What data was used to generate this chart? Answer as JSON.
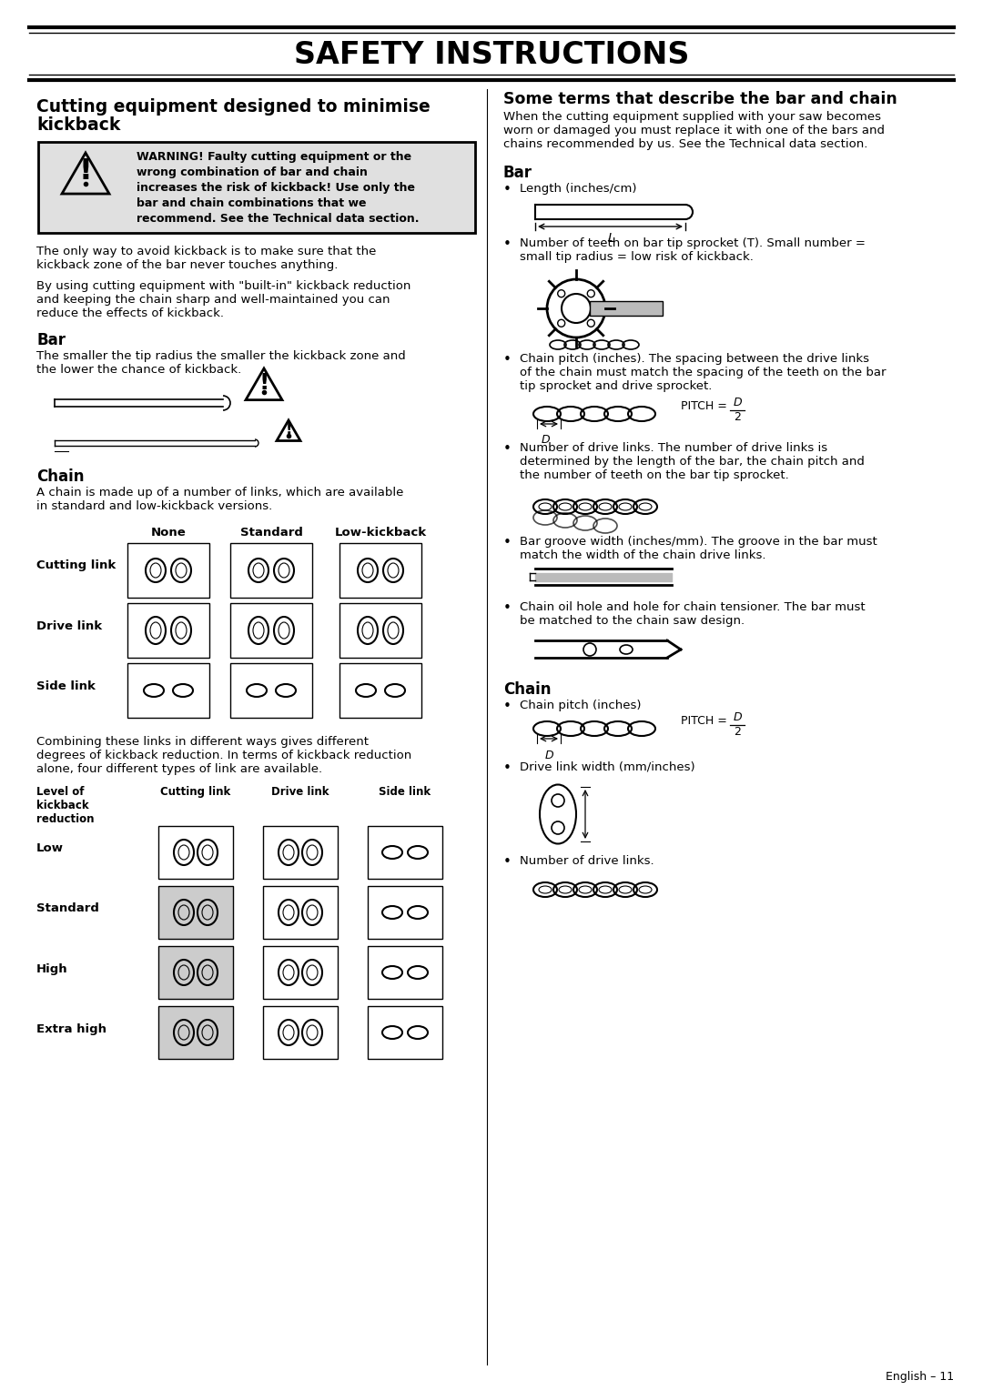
{
  "title": "SAFETY INSTRUCTIONS",
  "bg_color": "#ffffff",
  "text_color": "#000000",
  "page_number": "English – 11",
  "left_col": {
    "heading_line1": "Cutting equipment designed to minimise",
    "heading_line2": "kickback",
    "warning_lines": [
      "WARNING! Faulty cutting equipment or the",
      "wrong combination of bar and chain",
      "increases the risk of kickback! Use only the",
      "bar and chain combinations that we",
      "recommend. See the Technical data section."
    ],
    "para1_lines": [
      "The only way to avoid kickback is to make sure that the",
      "kickback zone of the bar never touches anything."
    ],
    "para2_lines": [
      "By using cutting equipment with \"built-in\" kickback reduction",
      "and keeping the chain sharp and well-maintained you can",
      "reduce the effects of kickback."
    ],
    "bar_heading": "Bar",
    "bar_text_lines": [
      "The smaller the tip radius the smaller the kickback zone and",
      "the lower the chance of kickback."
    ],
    "chain_heading": "Chain",
    "chain_text_lines": [
      "A chain is made up of a number of links, which are available",
      "in standard and low-kickback versions."
    ],
    "table1_headers": [
      "None",
      "Standard",
      "Low-kickback"
    ],
    "table1_rows": [
      "Cutting link",
      "Drive link",
      "Side link"
    ],
    "para3_lines": [
      "Combining these links in different ways gives different",
      "degrees of kickback reduction. In terms of kickback reduction",
      "alone, four different types of link are available."
    ],
    "table2_col0": "Level of\nkickback\nreduction",
    "table2_headers": [
      "Cutting link",
      "Drive link",
      "Side link"
    ],
    "table2_rows": [
      "Low",
      "Standard",
      "High",
      "Extra high"
    ]
  },
  "right_col": {
    "heading": "Some terms that describe the bar and chain",
    "intro_lines": [
      "When the cutting equipment supplied with your saw becomes",
      "worn or damaged you must replace it with one of the bars and",
      "chains recommended by us. See the Technical data section."
    ],
    "bar_heading": "Bar",
    "bar_item1": "Length (inches/cm)",
    "bar_item2_lines": [
      "Number of teeth on bar tip sprocket (T). Small number =",
      "small tip radius = low risk of kickback."
    ],
    "bar_item3_lines": [
      "Chain pitch (inches). The spacing between the drive links",
      "of the chain must match the spacing of the teeth on the bar",
      "tip sprocket and drive sprocket."
    ],
    "bar_item4_lines": [
      "Number of drive links. The number of drive links is",
      "determined by the length of the bar, the chain pitch and",
      "the number of teeth on the bar tip sprocket."
    ],
    "bar_item5_lines": [
      "Bar groove width (inches/mm). The groove in the bar must",
      "match the width of the chain drive links."
    ],
    "bar_item6_lines": [
      "Chain oil hole and hole for chain tensioner. The bar must",
      "be matched to the chain saw design."
    ],
    "chain_heading": "Chain",
    "chain_item1": "Chain pitch (inches)",
    "chain_item2": "Drive link width (mm/inches)",
    "chain_item3": "Number of drive links."
  }
}
